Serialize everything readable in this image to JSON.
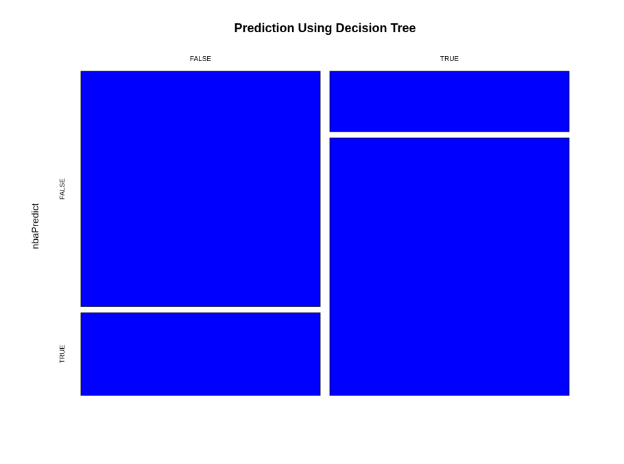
{
  "chart_data": {
    "type": "mosaic",
    "title": "Prediction Using Decision Tree",
    "xlabel": "",
    "ylabel": "nbaPredict",
    "column_categories": [
      "FALSE",
      "TRUE"
    ],
    "row_categories": [
      "FALSE",
      "TRUE"
    ],
    "column_proportions": [
      0.5,
      0.5
    ],
    "cells": [
      {
        "column": "FALSE",
        "row": "FALSE",
        "proportion": 0.74
      },
      {
        "column": "FALSE",
        "row": "TRUE",
        "proportion": 0.26
      },
      {
        "column": "TRUE",
        "row": "FALSE",
        "proportion": 0.19
      },
      {
        "column": "TRUE",
        "row": "TRUE",
        "proportion": 0.81
      }
    ],
    "fill_color": "#0000ff"
  }
}
